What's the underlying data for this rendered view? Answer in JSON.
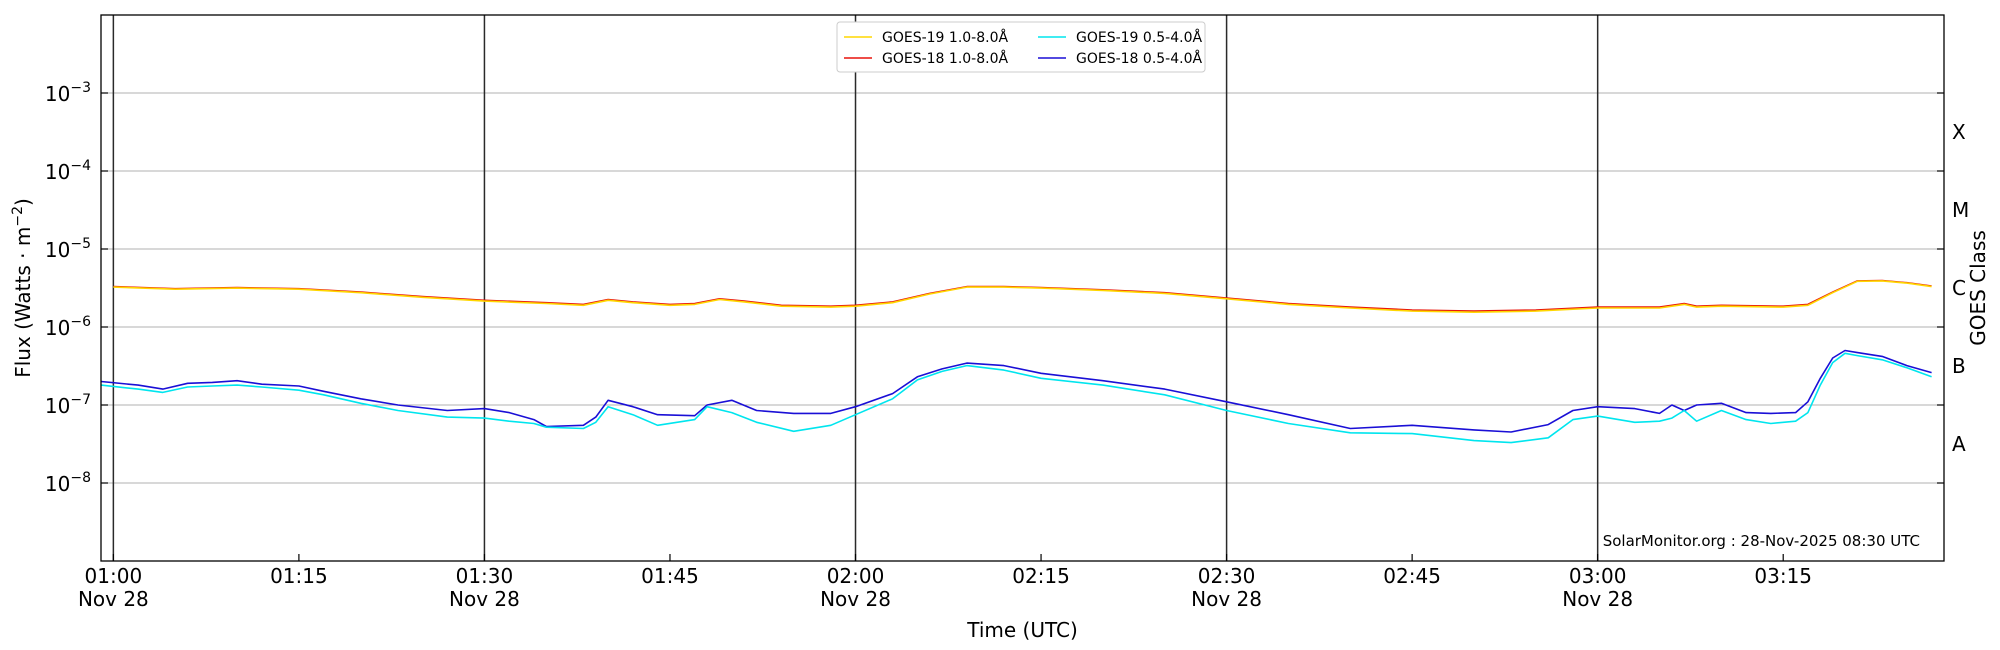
{
  "chart_data": {
    "type": "line",
    "title": "",
    "xlabel": "Time (UTC)",
    "ylabel": "Flux (Watts · m⁻²)",
    "ylabel_right": "GOES Class",
    "y_scale": "log",
    "ylim": [
      1e-09,
      0.01
    ],
    "xlim": [
      "2025-11-28 00:59",
      "2025-11-28 03:28"
    ],
    "grid": "horizontal at decades",
    "legend_placement": "top-center",
    "credit": "SolarMonitor.org : 28-Nov-2025 08:30 UTC",
    "x_ticks": [
      {
        "time": "01:00",
        "line1": "01:00",
        "line2": "Nov 28"
      },
      {
        "time": "01:15",
        "line1": "01:15",
        "line2": ""
      },
      {
        "time": "01:30",
        "line1": "01:30",
        "line2": "Nov 28"
      },
      {
        "time": "01:45",
        "line1": "01:45",
        "line2": ""
      },
      {
        "time": "02:00",
        "line1": "02:00",
        "line2": "Nov 28"
      },
      {
        "time": "02:15",
        "line1": "02:15",
        "line2": ""
      },
      {
        "time": "02:30",
        "line1": "02:30",
        "line2": "Nov 28"
      },
      {
        "time": "02:45",
        "line1": "02:45",
        "line2": ""
      },
      {
        "time": "03:00",
        "line1": "03:00",
        "line2": "Nov 28"
      },
      {
        "time": "03:15",
        "line1": "03:15",
        "line2": ""
      }
    ],
    "y_ticks": [
      {
        "value": 1e-08,
        "mantissa": "10",
        "exponent": "−8"
      },
      {
        "value": 1e-07,
        "mantissa": "10",
        "exponent": "−7"
      },
      {
        "value": 1e-06,
        "mantissa": "10",
        "exponent": "−6"
      },
      {
        "value": 1e-05,
        "mantissa": "10",
        "exponent": "−5"
      },
      {
        "value": 0.0001,
        "mantissa": "10",
        "exponent": "−4"
      },
      {
        "value": 0.001,
        "mantissa": "10",
        "exponent": "−3"
      }
    ],
    "vertical_markers": [
      "01:00",
      "01:30",
      "02:00",
      "02:30",
      "03:00"
    ],
    "goes_classes": [
      {
        "label": "A",
        "value": 3.16e-08
      },
      {
        "label": "B",
        "value": 3.16e-07
      },
      {
        "label": "C",
        "value": 3.16e-06
      },
      {
        "label": "M",
        "value": 3.16e-05
      },
      {
        "label": "X",
        "value": 0.000316
      }
    ],
    "legend": [
      {
        "name": "GOES-19 1.0-8.0Å",
        "color": "#ffd700"
      },
      {
        "name": "GOES-18 1.0-8.0Å",
        "color": "#e8140c"
      },
      {
        "name": "GOES-19 0.5-4.0Å",
        "color": "#00e5ee"
      },
      {
        "name": "GOES-18 0.5-4.0Å",
        "color": "#1a0fd6"
      }
    ],
    "series": [
      {
        "name": "GOES-18 1.0-8.0Å",
        "color": "#e8140c",
        "x": [
          "01:00",
          "01:05",
          "01:10",
          "01:15",
          "01:20",
          "01:25",
          "01:30",
          "01:35",
          "01:38",
          "01:40",
          "01:42",
          "01:45",
          "01:47",
          "01:49",
          "01:51",
          "01:54",
          "01:58",
          "02:00",
          "02:03",
          "02:06",
          "02:09",
          "02:12",
          "02:15",
          "02:20",
          "02:25",
          "02:30",
          "02:35",
          "02:40",
          "02:45",
          "02:50",
          "02:55",
          "03:00",
          "03:05",
          "03:07",
          "03:08",
          "03:10",
          "03:15",
          "03:17",
          "03:19",
          "03:21",
          "03:23",
          "03:25",
          "03:27"
        ],
        "y": [
          3.3e-06,
          3.1e-06,
          3.2e-06,
          3.1e-06,
          2.8e-06,
          2.45e-06,
          2.2e-06,
          2.05e-06,
          1.95e-06,
          2.25e-06,
          2.1e-06,
          1.95e-06,
          2e-06,
          2.3e-06,
          2.15e-06,
          1.9e-06,
          1.85e-06,
          1.9e-06,
          2.1e-06,
          2.7e-06,
          3.3e-06,
          3.3e-06,
          3.2e-06,
          3e-06,
          2.75e-06,
          2.35e-06,
          2e-06,
          1.8e-06,
          1.65e-06,
          1.6e-06,
          1.65e-06,
          1.8e-06,
          1.8e-06,
          2e-06,
          1.85e-06,
          1.9e-06,
          1.85e-06,
          1.95e-06,
          2.8e-06,
          3.9e-06,
          3.95e-06,
          3.7e-06,
          3.35e-06
        ]
      },
      {
        "name": "GOES-19 1.0-8.0Å",
        "color": "#ffd700",
        "x": [
          "01:00",
          "01:05",
          "01:10",
          "01:15",
          "01:20",
          "01:25",
          "01:30",
          "01:35",
          "01:38",
          "01:40",
          "01:42",
          "01:45",
          "01:47",
          "01:49",
          "01:51",
          "01:54",
          "01:58",
          "02:00",
          "02:03",
          "02:06",
          "02:09",
          "02:12",
          "02:15",
          "02:20",
          "02:25",
          "02:30",
          "02:35",
          "02:40",
          "02:45",
          "02:50",
          "02:55",
          "03:00",
          "03:05",
          "03:07",
          "03:08",
          "03:10",
          "03:15",
          "03:17",
          "03:19",
          "03:21",
          "03:23",
          "03:25",
          "03:27"
        ],
        "y": [
          3.25e-06,
          3.05e-06,
          3.15e-06,
          3.05e-06,
          2.75e-06,
          2.4e-06,
          2.15e-06,
          2e-06,
          1.9e-06,
          2.2e-06,
          2.05e-06,
          1.9e-06,
          1.95e-06,
          2.25e-06,
          2.1e-06,
          1.85e-06,
          1.8e-06,
          1.85e-06,
          2.05e-06,
          2.65e-06,
          3.25e-06,
          3.25e-06,
          3.15e-06,
          2.95e-06,
          2.7e-06,
          2.3e-06,
          1.95e-06,
          1.75e-06,
          1.6e-06,
          1.55e-06,
          1.6e-06,
          1.75e-06,
          1.75e-06,
          1.95e-06,
          1.8e-06,
          1.85e-06,
          1.8e-06,
          1.9e-06,
          2.75e-06,
          3.85e-06,
          3.9e-06,
          3.65e-06,
          3.3e-06
        ]
      },
      {
        "name": "GOES-18 0.5-4.0Å",
        "color": "#1a0fd6",
        "x": [
          "00:59",
          "01:02",
          "01:04",
          "01:06",
          "01:08",
          "01:10",
          "01:12",
          "01:15",
          "01:17",
          "01:20",
          "01:23",
          "01:27",
          "01:30",
          "01:32",
          "01:34",
          "01:35",
          "01:38",
          "01:39",
          "01:40",
          "01:42",
          "01:44",
          "01:47",
          "01:48",
          "01:50",
          "01:52",
          "01:55",
          "01:58",
          "02:00",
          "02:03",
          "02:05",
          "02:07",
          "02:09",
          "02:12",
          "02:15",
          "02:20",
          "02:25",
          "02:30",
          "02:35",
          "02:40",
          "02:45",
          "02:50",
          "02:53",
          "02:56",
          "02:58",
          "03:00",
          "03:03",
          "03:05",
          "03:06",
          "03:07",
          "03:08",
          "03:10",
          "03:12",
          "03:14",
          "03:16",
          "03:17",
          "03:18",
          "03:19",
          "03:20",
          "03:21",
          "03:23",
          "03:25",
          "03:27"
        ],
        "y": [
          2e-07,
          1.8e-07,
          1.6e-07,
          1.9e-07,
          1.95e-07,
          2.05e-07,
          1.85e-07,
          1.75e-07,
          1.5e-07,
          1.2e-07,
          1e-07,
          8.5e-08,
          9e-08,
          8e-08,
          6.5e-08,
          5.3e-08,
          5.5e-08,
          7e-08,
          1.15e-07,
          9.5e-08,
          7.5e-08,
          7.3e-08,
          1e-07,
          1.15e-07,
          8.5e-08,
          7.8e-08,
          7.8e-08,
          9.5e-08,
          1.4e-07,
          2.3e-07,
          2.9e-07,
          3.45e-07,
          3.2e-07,
          2.55e-07,
          2.05e-07,
          1.6e-07,
          1.1e-07,
          7.5e-08,
          5e-08,
          5.5e-08,
          4.8e-08,
          4.5e-08,
          5.6e-08,
          8.5e-08,
          9.5e-08,
          9e-08,
          7.8e-08,
          1e-07,
          8.5e-08,
          1e-07,
          1.05e-07,
          8e-08,
          7.8e-08,
          8e-08,
          1.1e-07,
          2.2e-07,
          4e-07,
          5e-07,
          4.7e-07,
          4.2e-07,
          3.2e-07,
          2.6e-07
        ]
      },
      {
        "name": "GOES-19 0.5-4.0Å",
        "color": "#00e5ee",
        "x": [
          "00:59",
          "01:02",
          "01:04",
          "01:06",
          "01:08",
          "01:10",
          "01:12",
          "01:15",
          "01:17",
          "01:20",
          "01:23",
          "01:27",
          "01:30",
          "01:32",
          "01:34",
          "01:35",
          "01:38",
          "01:39",
          "01:40",
          "01:42",
          "01:44",
          "01:47",
          "01:48",
          "01:50",
          "01:52",
          "01:55",
          "01:58",
          "02:00",
          "02:03",
          "02:05",
          "02:07",
          "02:09",
          "02:12",
          "02:15",
          "02:20",
          "02:25",
          "02:30",
          "02:35",
          "02:40",
          "02:45",
          "02:50",
          "02:53",
          "02:56",
          "02:58",
          "03:00",
          "03:03",
          "03:05",
          "03:06",
          "03:07",
          "03:08",
          "03:10",
          "03:12",
          "03:14",
          "03:16",
          "03:17",
          "03:18",
          "03:19",
          "03:20",
          "03:21",
          "03:23",
          "03:25",
          "03:27"
        ],
        "y": [
          1.8e-07,
          1.6e-07,
          1.45e-07,
          1.7e-07,
          1.75e-07,
          1.8e-07,
          1.7e-07,
          1.55e-07,
          1.35e-07,
          1.05e-07,
          8.5e-08,
          7e-08,
          6.8e-08,
          6.2e-08,
          5.8e-08,
          5.2e-08,
          5e-08,
          6e-08,
          9.5e-08,
          7.5e-08,
          5.5e-08,
          6.5e-08,
          9.5e-08,
          8e-08,
          6e-08,
          4.6e-08,
          5.5e-08,
          7.5e-08,
          1.2e-07,
          2.1e-07,
          2.7e-07,
          3.2e-07,
          2.8e-07,
          2.2e-07,
          1.8e-07,
          1.35e-07,
          8.5e-08,
          5.8e-08,
          4.4e-08,
          4.3e-08,
          3.5e-08,
          3.3e-08,
          3.8e-08,
          6.5e-08,
          7.2e-08,
          6e-08,
          6.2e-08,
          6.8e-08,
          8.5e-08,
          6.2e-08,
          8.5e-08,
          6.5e-08,
          5.8e-08,
          6.2e-08,
          8e-08,
          1.8e-07,
          3.5e-07,
          4.6e-07,
          4.3e-07,
          3.8e-07,
          3e-07,
          2.3e-07
        ]
      }
    ]
  }
}
